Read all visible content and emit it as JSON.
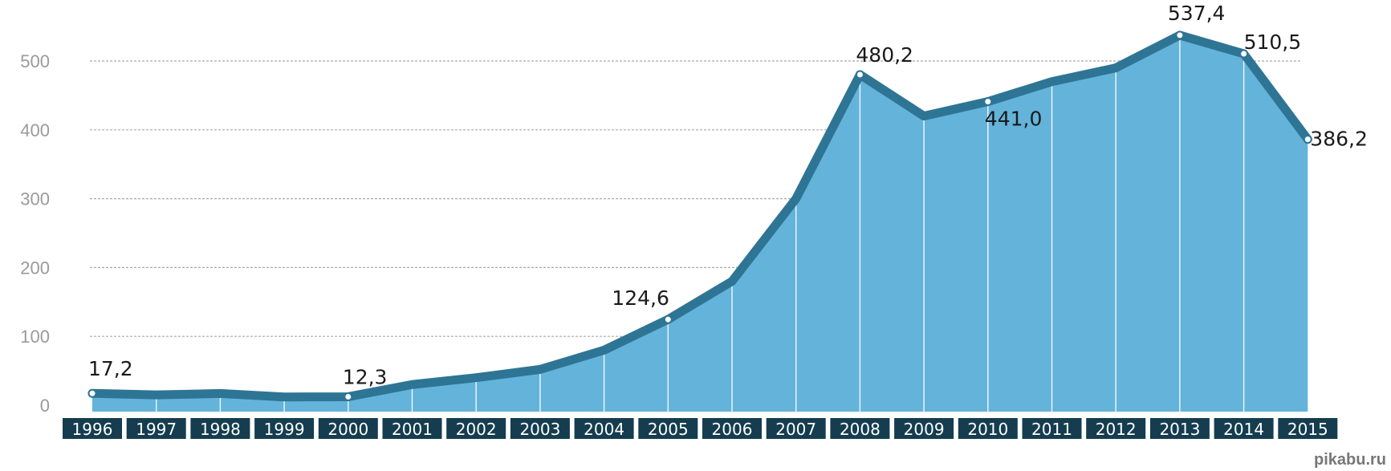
{
  "chart_data": {
    "type": "area",
    "title": "",
    "xlabel": "",
    "ylabel": "",
    "ylim": [
      0,
      550
    ],
    "yticks": [
      "0",
      "100",
      "200",
      "300",
      "400",
      "500"
    ],
    "grid": true,
    "categories": [
      "1996",
      "1997",
      "1998",
      "1999",
      "2000",
      "2001",
      "2002",
      "2003",
      "2004",
      "2005",
      "2006",
      "2007",
      "2008",
      "2009",
      "2010",
      "2011",
      "2012",
      "2013",
      "2014",
      "2015"
    ],
    "values": [
      17.2,
      15,
      17,
      12,
      12.3,
      30,
      40,
      52,
      80,
      124.6,
      180,
      300,
      480.2,
      420,
      441.0,
      470,
      490,
      537.4,
      510.5,
      386.2
    ],
    "data_labels": [
      {
        "index": 0,
        "text": "17,2"
      },
      {
        "index": 4,
        "text": "12,3"
      },
      {
        "index": 9,
        "text": "124,6"
      },
      {
        "index": 12,
        "text": "480,2"
      },
      {
        "index": 14,
        "text": "441,0"
      },
      {
        "index": 17,
        "text": "537,4"
      },
      {
        "index": 18,
        "text": "510,5"
      },
      {
        "index": 19,
        "text": "386,2"
      }
    ],
    "colors": {
      "area": "#64b3da",
      "line": "#2e7595",
      "label_bar": "#153d4f",
      "gridline": "#aaaaaa",
      "vertical_line": "#e8f4fa"
    }
  },
  "watermark": "pikabu.ru"
}
